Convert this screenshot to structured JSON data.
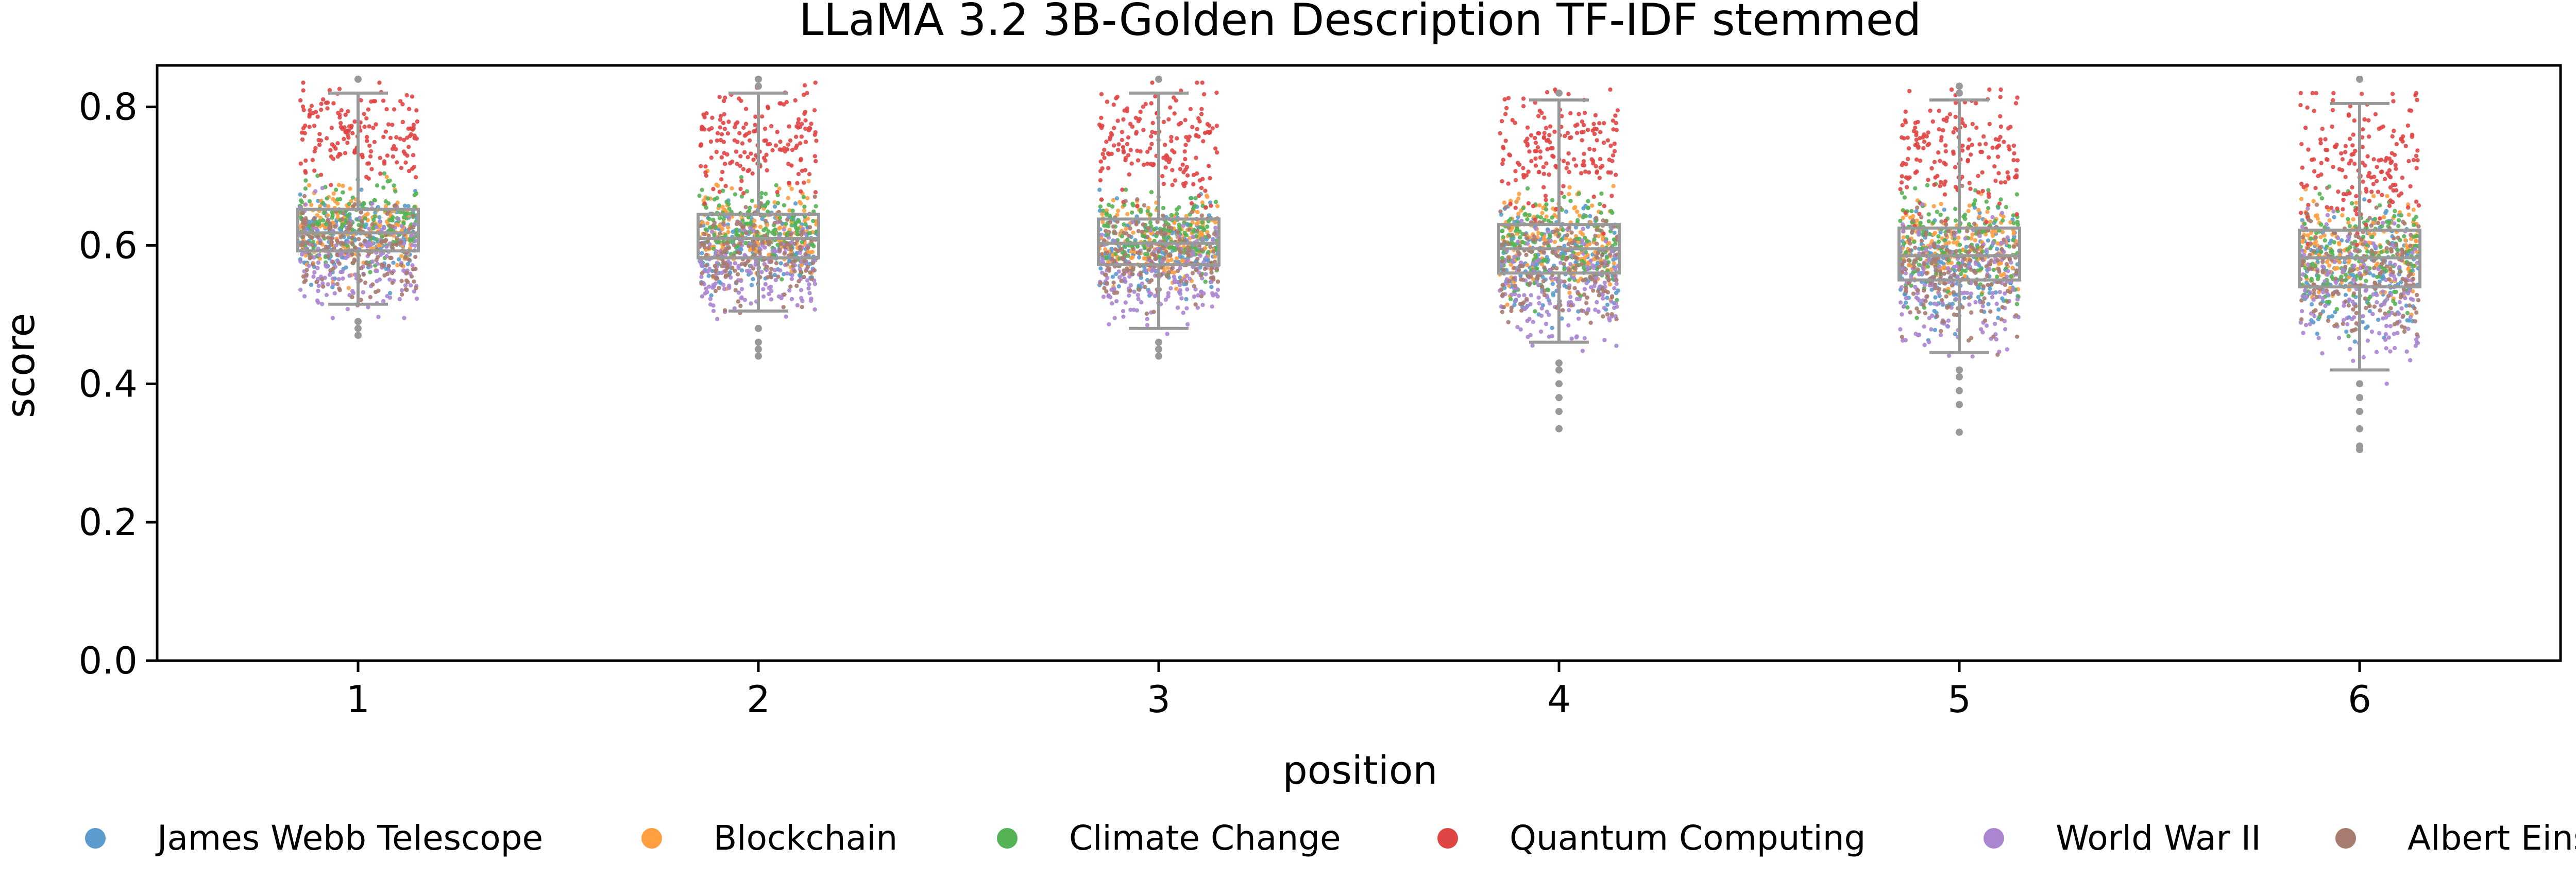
{
  "chart_data": {
    "type": "box-strip",
    "title": "LLaMA 3.2 3B-Golden Description TF-IDF stemmed",
    "xlabel": "position",
    "ylabel": "score",
    "ylim": [
      0.0,
      0.86
    ],
    "y_ticks": [
      0.0,
      0.2,
      0.4,
      0.6,
      0.8
    ],
    "y_tick_labels": [
      "0.0",
      "0.2",
      "0.4",
      "0.6",
      "0.8"
    ],
    "categories": [
      "1",
      "2",
      "3",
      "4",
      "5",
      "6"
    ],
    "grid": false,
    "legend_position": "bottom",
    "box_color": "#999999",
    "boxes": [
      {
        "position": "1",
        "whislo": 0.515,
        "q1": 0.592,
        "med": 0.618,
        "q3": 0.652,
        "whishi": 0.82,
        "fliers_low": [
          0.49,
          0.48,
          0.47
        ],
        "fliers_high": [
          0.84
        ]
      },
      {
        "position": "2",
        "whislo": 0.505,
        "q1": 0.582,
        "med": 0.61,
        "q3": 0.645,
        "whishi": 0.82,
        "fliers_low": [
          0.48,
          0.46,
          0.45,
          0.44
        ],
        "fliers_high": [
          0.84,
          0.83
        ]
      },
      {
        "position": "3",
        "whislo": 0.48,
        "q1": 0.572,
        "med": 0.603,
        "q3": 0.638,
        "whishi": 0.82,
        "fliers_low": [
          0.46,
          0.45,
          0.44
        ],
        "fliers_high": [
          0.84
        ]
      },
      {
        "position": "4",
        "whislo": 0.46,
        "q1": 0.56,
        "med": 0.595,
        "q3": 0.63,
        "whishi": 0.81,
        "fliers_low": [
          0.43,
          0.42,
          0.4,
          0.38,
          0.36,
          0.335
        ],
        "fliers_high": [
          0.82
        ]
      },
      {
        "position": "5",
        "whislo": 0.445,
        "q1": 0.55,
        "med": 0.585,
        "q3": 0.625,
        "whishi": 0.81,
        "fliers_low": [
          0.42,
          0.41,
          0.39,
          0.37,
          0.33
        ],
        "fliers_high": [
          0.83,
          0.82
        ]
      },
      {
        "position": "6",
        "whislo": 0.42,
        "q1": 0.54,
        "med": 0.582,
        "q3": 0.622,
        "whishi": 0.805,
        "fliers_low": [
          0.4,
          0.38,
          0.36,
          0.335,
          0.31,
          0.305
        ],
        "fliers_high": [
          0.84
        ]
      }
    ],
    "series": [
      {
        "name": "James Webb Telescope",
        "color": "#5b9bcd",
        "center": [
          0.61,
          0.6,
          0.595,
          0.58,
          0.57,
          0.565
        ],
        "spread": [
          0.03,
          0.03,
          0.03,
          0.04,
          0.04,
          0.045
        ]
      },
      {
        "name": "Blockchain",
        "color": "#ff9f40",
        "center": [
          0.625,
          0.62,
          0.61,
          0.605,
          0.6,
          0.595
        ],
        "spread": [
          0.03,
          0.03,
          0.03,
          0.035,
          0.035,
          0.04
        ]
      },
      {
        "name": "Climate Change",
        "color": "#55b255",
        "center": [
          0.63,
          0.625,
          0.615,
          0.605,
          0.6,
          0.59
        ],
        "spread": [
          0.03,
          0.03,
          0.03,
          0.035,
          0.04,
          0.04
        ]
      },
      {
        "name": "Quantum Computing",
        "color": "#e04545",
        "center": [
          0.76,
          0.75,
          0.745,
          0.735,
          0.73,
          0.72
        ],
        "spread": [
          0.035,
          0.038,
          0.04,
          0.045,
          0.045,
          0.05
        ]
      },
      {
        "name": "World War II",
        "color": "#aa86d0",
        "center": [
          0.58,
          0.565,
          0.56,
          0.545,
          0.54,
          0.535
        ],
        "spread": [
          0.035,
          0.035,
          0.035,
          0.045,
          0.045,
          0.05
        ]
      },
      {
        "name": "Albert Einstein",
        "color": "#a87b70",
        "center": [
          0.595,
          0.59,
          0.585,
          0.57,
          0.565,
          0.56
        ],
        "spread": [
          0.035,
          0.035,
          0.035,
          0.04,
          0.045,
          0.045
        ]
      }
    ]
  }
}
